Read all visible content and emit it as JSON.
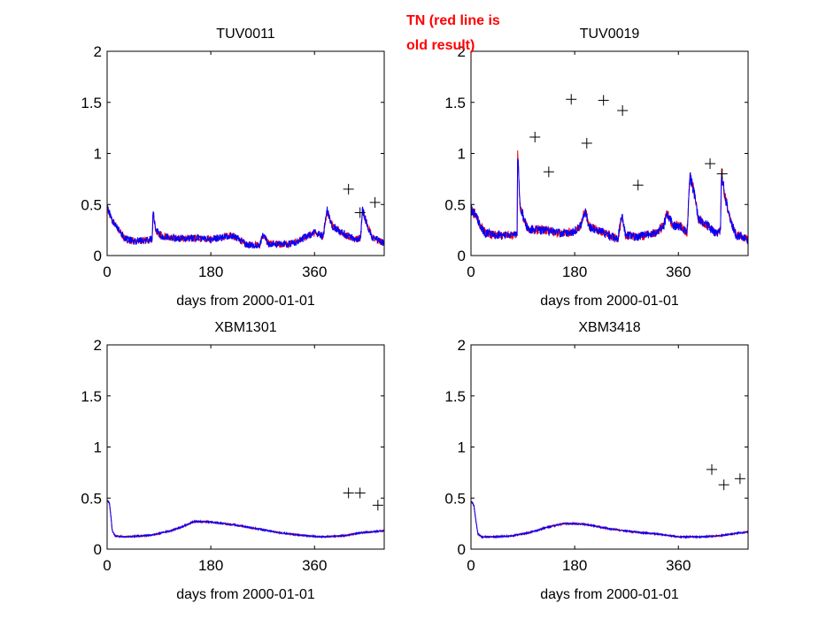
{
  "annotation": {
    "line1": "TN (red line is",
    "line2": "old result)",
    "color": "#ff0000"
  },
  "colors": {
    "old_result": "#ff0000",
    "new_result": "#0000ff",
    "observations": "#000000"
  },
  "chart_data": [
    {
      "type": "line",
      "title": "TUV0011",
      "xlabel": "days from 2000-01-01",
      "ylabel": "",
      "xlim": [
        0,
        481
      ],
      "ylim": [
        0,
        2
      ],
      "xticks": [
        0,
        180,
        360
      ],
      "xtick_labels": [
        "0",
        "180",
        "360"
      ],
      "yticks": [
        0,
        0.5,
        1,
        1.5,
        2
      ],
      "ytick_labels": [
        "0",
        "0.5",
        "1",
        "1.5",
        "2"
      ],
      "grid": false,
      "noise": 0.03,
      "series": [
        {
          "name": "old result",
          "color": "#ff0000"
        },
        {
          "name": "new result",
          "color": "#0000ff"
        }
      ],
      "profile": [
        [
          0,
          0.46
        ],
        [
          10,
          0.33
        ],
        [
          20,
          0.25
        ],
        [
          30,
          0.17
        ],
        [
          45,
          0.14
        ],
        [
          70,
          0.15
        ],
        [
          78,
          0.16
        ],
        [
          80,
          0.44
        ],
        [
          84,
          0.25
        ],
        [
          95,
          0.19
        ],
        [
          120,
          0.17
        ],
        [
          160,
          0.17
        ],
        [
          180,
          0.16
        ],
        [
          200,
          0.18
        ],
        [
          215,
          0.2
        ],
        [
          230,
          0.16
        ],
        [
          245,
          0.1
        ],
        [
          265,
          0.1
        ],
        [
          270,
          0.2
        ],
        [
          280,
          0.12
        ],
        [
          310,
          0.11
        ],
        [
          330,
          0.13
        ],
        [
          350,
          0.2
        ],
        [
          360,
          0.22
        ],
        [
          375,
          0.19
        ],
        [
          382,
          0.44
        ],
        [
          390,
          0.3
        ],
        [
          400,
          0.25
        ],
        [
          415,
          0.2
        ],
        [
          430,
          0.16
        ],
        [
          440,
          0.17
        ],
        [
          443,
          0.44
        ],
        [
          452,
          0.3
        ],
        [
          460,
          0.18
        ],
        [
          481,
          0.12
        ]
      ],
      "markers": {
        "name": "observations",
        "marker": "+",
        "points": [
          [
            419,
            0.65
          ],
          [
            439,
            0.42
          ],
          [
            465,
            0.52
          ]
        ]
      }
    },
    {
      "type": "line",
      "title": "TUV0019",
      "xlabel": "days from 2000-01-01",
      "ylabel": "",
      "xlim": [
        0,
        481
      ],
      "ylim": [
        0,
        2
      ],
      "xticks": [
        0,
        180,
        360
      ],
      "xtick_labels": [
        "0",
        "180",
        "360"
      ],
      "yticks": [
        0,
        0.5,
        1,
        1.5,
        2
      ],
      "ytick_labels": [
        "0",
        "0.5",
        "1",
        "1.5",
        "2"
      ],
      "grid": false,
      "noise": 0.035,
      "series": [
        {
          "name": "old result",
          "color": "#ff0000"
        },
        {
          "name": "new result",
          "color": "#0000ff"
        }
      ],
      "profile": [
        [
          0,
          0.45
        ],
        [
          8,
          0.4
        ],
        [
          15,
          0.3
        ],
        [
          25,
          0.22
        ],
        [
          40,
          0.2
        ],
        [
          75,
          0.2
        ],
        [
          80,
          0.22
        ],
        [
          81,
          0.99
        ],
        [
          85,
          0.5
        ],
        [
          92,
          0.35
        ],
        [
          100,
          0.25
        ],
        [
          130,
          0.25
        ],
        [
          150,
          0.22
        ],
        [
          175,
          0.23
        ],
        [
          190,
          0.28
        ],
        [
          198,
          0.45
        ],
        [
          205,
          0.28
        ],
        [
          220,
          0.25
        ],
        [
          240,
          0.2
        ],
        [
          255,
          0.16
        ],
        [
          262,
          0.4
        ],
        [
          268,
          0.2
        ],
        [
          290,
          0.18
        ],
        [
          320,
          0.22
        ],
        [
          335,
          0.3
        ],
        [
          340,
          0.42
        ],
        [
          350,
          0.3
        ],
        [
          365,
          0.28
        ],
        [
          375,
          0.22
        ],
        [
          380,
          0.78
        ],
        [
          388,
          0.6
        ],
        [
          395,
          0.35
        ],
        [
          410,
          0.3
        ],
        [
          425,
          0.22
        ],
        [
          433,
          0.25
        ],
        [
          435,
          0.8
        ],
        [
          442,
          0.55
        ],
        [
          450,
          0.35
        ],
        [
          460,
          0.2
        ],
        [
          475,
          0.18
        ],
        [
          481,
          0.15
        ]
      ],
      "markers": {
        "name": "observations",
        "marker": "+",
        "points": [
          [
            111,
            1.16
          ],
          [
            135,
            0.82
          ],
          [
            174,
            1.53
          ],
          [
            201,
            1.1
          ],
          [
            230,
            1.52
          ],
          [
            263,
            1.42
          ],
          [
            290,
            0.69
          ],
          [
            415,
            0.9
          ],
          [
            436,
            0.8
          ]
        ]
      }
    },
    {
      "type": "line",
      "title": "XBM1301",
      "xlabel": "days from 2000-01-01",
      "ylabel": "",
      "xlim": [
        0,
        481
      ],
      "ylim": [
        0,
        2
      ],
      "xticks": [
        0,
        180,
        360
      ],
      "xtick_labels": [
        "0",
        "180",
        "360"
      ],
      "yticks": [
        0,
        0.5,
        1,
        1.5,
        2
      ],
      "ytick_labels": [
        "0",
        "0.5",
        "1",
        "1.5",
        "2"
      ],
      "grid": false,
      "noise": 0.006,
      "series": [
        {
          "name": "old result",
          "color": "#ff0000"
        },
        {
          "name": "new result",
          "color": "#0000ff"
        }
      ],
      "profile": [
        [
          0,
          0.48
        ],
        [
          4,
          0.45
        ],
        [
          6,
          0.35
        ],
        [
          9,
          0.18
        ],
        [
          14,
          0.13
        ],
        [
          30,
          0.12
        ],
        [
          60,
          0.13
        ],
        [
          80,
          0.14
        ],
        [
          110,
          0.18
        ],
        [
          140,
          0.24
        ],
        [
          150,
          0.27
        ],
        [
          170,
          0.27
        ],
        [
          190,
          0.26
        ],
        [
          230,
          0.23
        ],
        [
          270,
          0.19
        ],
        [
          300,
          0.16
        ],
        [
          330,
          0.14
        ],
        [
          370,
          0.12
        ],
        [
          410,
          0.13
        ],
        [
          440,
          0.16
        ],
        [
          481,
          0.18
        ]
      ],
      "markers": {
        "name": "observations",
        "marker": "+",
        "points": [
          [
            419,
            0.55
          ],
          [
            439,
            0.55
          ],
          [
            470,
            0.43
          ]
        ]
      }
    },
    {
      "type": "line",
      "title": "XBM3418",
      "xlabel": "days from 2000-01-01",
      "ylabel": "",
      "xlim": [
        0,
        481
      ],
      "ylim": [
        0,
        2
      ],
      "xticks": [
        0,
        180,
        360
      ],
      "xtick_labels": [
        "0",
        "180",
        "360"
      ],
      "yticks": [
        0,
        0.5,
        1,
        1.5,
        2
      ],
      "ytick_labels": [
        "0",
        "0.5",
        "1",
        "1.5",
        "2"
      ],
      "grid": false,
      "noise": 0.006,
      "series": [
        {
          "name": "old result",
          "color": "#ff0000"
        },
        {
          "name": "new result",
          "color": "#0000ff"
        }
      ],
      "profile": [
        [
          0,
          0.47
        ],
        [
          5,
          0.43
        ],
        [
          8,
          0.3
        ],
        [
          12,
          0.15
        ],
        [
          18,
          0.12
        ],
        [
          40,
          0.12
        ],
        [
          70,
          0.13
        ],
        [
          100,
          0.16
        ],
        [
          130,
          0.21
        ],
        [
          160,
          0.25
        ],
        [
          180,
          0.25
        ],
        [
          200,
          0.24
        ],
        [
          240,
          0.2
        ],
        [
          280,
          0.17
        ],
        [
          320,
          0.15
        ],
        [
          360,
          0.12
        ],
        [
          400,
          0.12
        ],
        [
          430,
          0.13
        ],
        [
          481,
          0.17
        ]
      ],
      "markers": {
        "name": "observations",
        "marker": "+",
        "points": [
          [
            418,
            0.78
          ],
          [
            439,
            0.63
          ],
          [
            467,
            0.69
          ]
        ]
      }
    }
  ]
}
